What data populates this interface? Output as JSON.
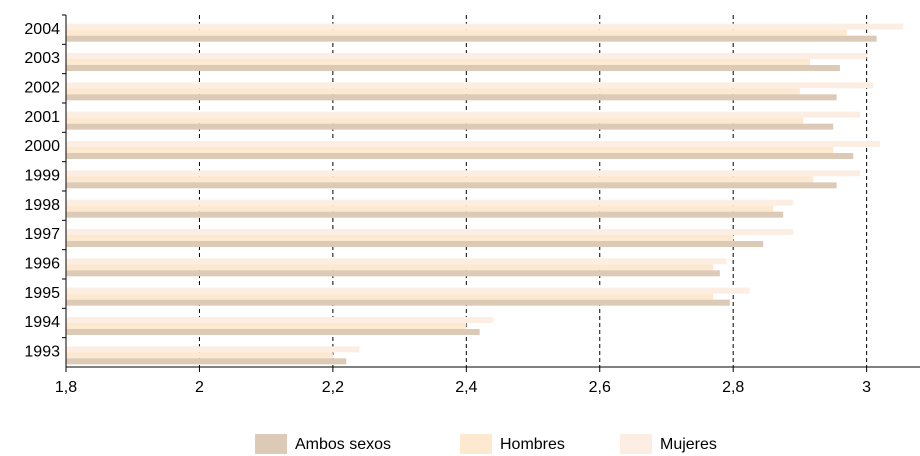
{
  "chart_data": {
    "type": "hbar",
    "categories": [
      "2004",
      "2003",
      "2002",
      "2001",
      "2000",
      "1999",
      "1998",
      "1997",
      "1996",
      "1995",
      "1994",
      "1993"
    ],
    "series": [
      {
        "name": "Mujeres",
        "color": "#fdeee3",
        "values": [
          3.055,
          3.0,
          3.01,
          2.99,
          3.02,
          2.99,
          2.89,
          2.89,
          2.79,
          2.825,
          2.44,
          2.24
        ]
      },
      {
        "name": "Hombres",
        "color": "#fde9cf",
        "values": [
          2.97,
          2.915,
          2.9,
          2.905,
          2.95,
          2.92,
          2.86,
          2.8,
          2.77,
          2.77,
          2.4,
          2.2
        ]
      },
      {
        "name": "Ambos sexos",
        "color": "#dccab6",
        "values": [
          3.015,
          2.96,
          2.955,
          2.95,
          2.98,
          2.955,
          2.875,
          2.845,
          2.78,
          2.795,
          2.42,
          2.22
        ]
      }
    ],
    "legend_order": [
      2,
      1,
      0
    ],
    "xlim": [
      1.8,
      3.08
    ],
    "xticks": [
      {
        "value": 1.8,
        "label": "1,8"
      },
      2,
      {
        "value": 2.2,
        "label": "2,2"
      },
      {
        "value": 2.4,
        "label": "2,4"
      },
      {
        "value": 2.6,
        "label": "2,6"
      },
      {
        "value": 2.8,
        "label": "2,8"
      },
      3
    ],
    "grid": true
  }
}
